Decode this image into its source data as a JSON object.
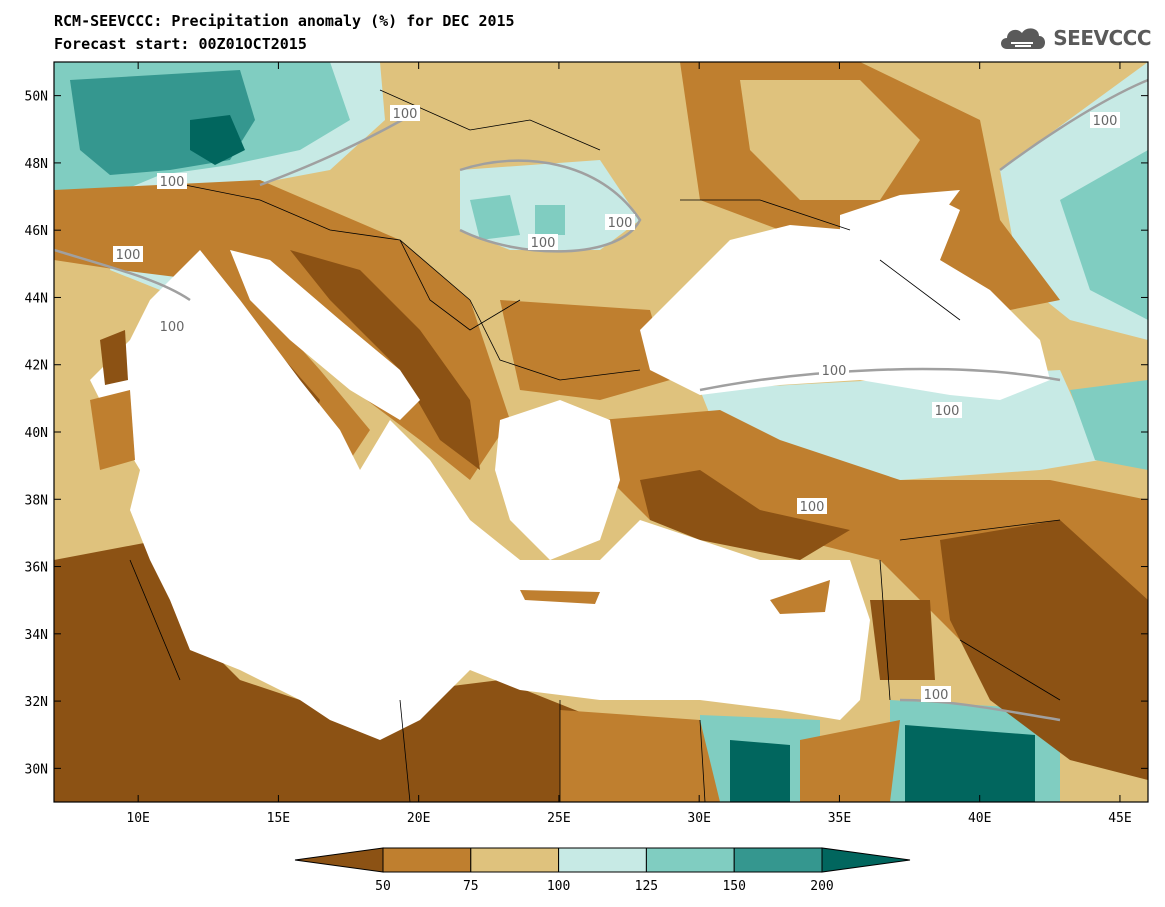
{
  "header": {
    "title_line1": "RCM-SEEVCCC: Precipitation anomaly (%) for DEC 2015",
    "title_line2": "Forecast start: 00Z01OCT2015",
    "logo_text": "SEEVCCC",
    "logo_icon": "cloud-icon"
  },
  "map": {
    "lon_range": [
      7,
      46
    ],
    "lat_range": [
      29,
      51
    ],
    "lon_ticks": [
      "10E",
      "15E",
      "20E",
      "25E",
      "30E",
      "35E",
      "40E",
      "45E"
    ],
    "lat_ticks": [
      "50N",
      "48N",
      "46N",
      "44N",
      "42N",
      "40N",
      "38N",
      "36N",
      "34N",
      "32N",
      "30N"
    ],
    "contour_labels": [
      "100",
      "100",
      "100",
      "100",
      "100",
      "100",
      "100",
      "100",
      "100",
      "100",
      "100"
    ],
    "sea_color": "#ffffff"
  },
  "legend": {
    "tick_labels": [
      "50",
      "75",
      "100",
      "125",
      "150",
      "200"
    ],
    "colors": [
      "#8c5214",
      "#bf7f2f",
      "#dfc27d",
      "#c7eae5",
      "#80cdc1",
      "#35978f",
      "#01665e"
    ]
  }
}
